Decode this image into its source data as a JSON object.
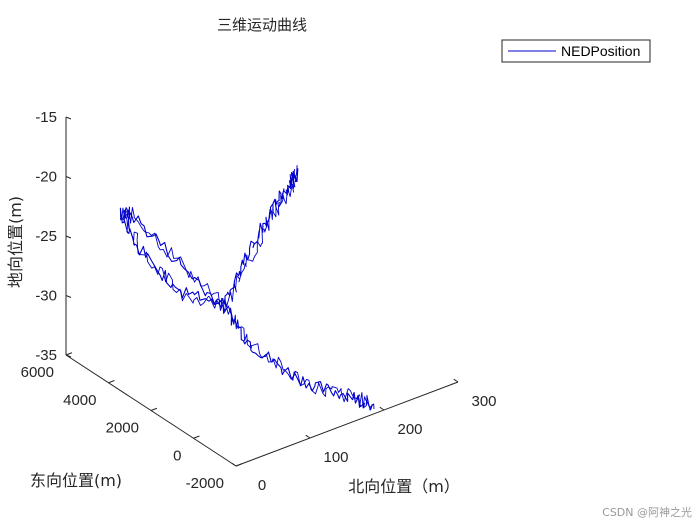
{
  "chart_data": {
    "type": "line",
    "dimension": "3d",
    "title": "三维运动曲线",
    "xlabel": "北向位置（m）",
    "ylabel": "东向位置(m)",
    "zlabel": "地向位置(m)",
    "xlim": [
      0,
      300
    ],
    "ylim": [
      -2000,
      6000
    ],
    "zlim": [
      -35,
      -15
    ],
    "x_ticks": [
      "0",
      "100",
      "200",
      "300"
    ],
    "y_ticks": [
      "-2000",
      "0",
      "2000",
      "4000",
      "6000"
    ],
    "z_ticks": [
      "-35",
      "-30",
      "-25",
      "-20",
      "-15"
    ],
    "legend_position": "top-right",
    "grid": false,
    "series": [
      {
        "name": "NEDPosition",
        "color": "#0000cc",
        "points": [
          [
            280,
            5000,
            -24.8
          ],
          [
            255,
            4300,
            -24.5
          ],
          [
            225,
            3700,
            -24.2
          ],
          [
            190,
            3000,
            -23.8
          ],
          [
            150,
            2300,
            -24.5
          ],
          [
            110,
            1700,
            -25.5
          ],
          [
            70,
            1200,
            -27.0
          ],
          [
            40,
            2200,
            -26.0
          ],
          [
            25,
            3500,
            -23.5
          ],
          [
            20,
            4200,
            -21.5
          ],
          [
            30,
            4000,
            -21.5
          ],
          [
            55,
            2600,
            -24.5
          ],
          [
            80,
            1300,
            -27.5
          ],
          [
            95,
            700,
            -30.0
          ],
          [
            120,
            0,
            -32.0
          ],
          [
            150,
            -700,
            -33.5
          ],
          [
            175,
            -1300,
            -34.0
          ],
          [
            190,
            -1800,
            -34.5
          ]
        ]
      }
    ]
  },
  "watermark": "CSDN @阿神之光"
}
